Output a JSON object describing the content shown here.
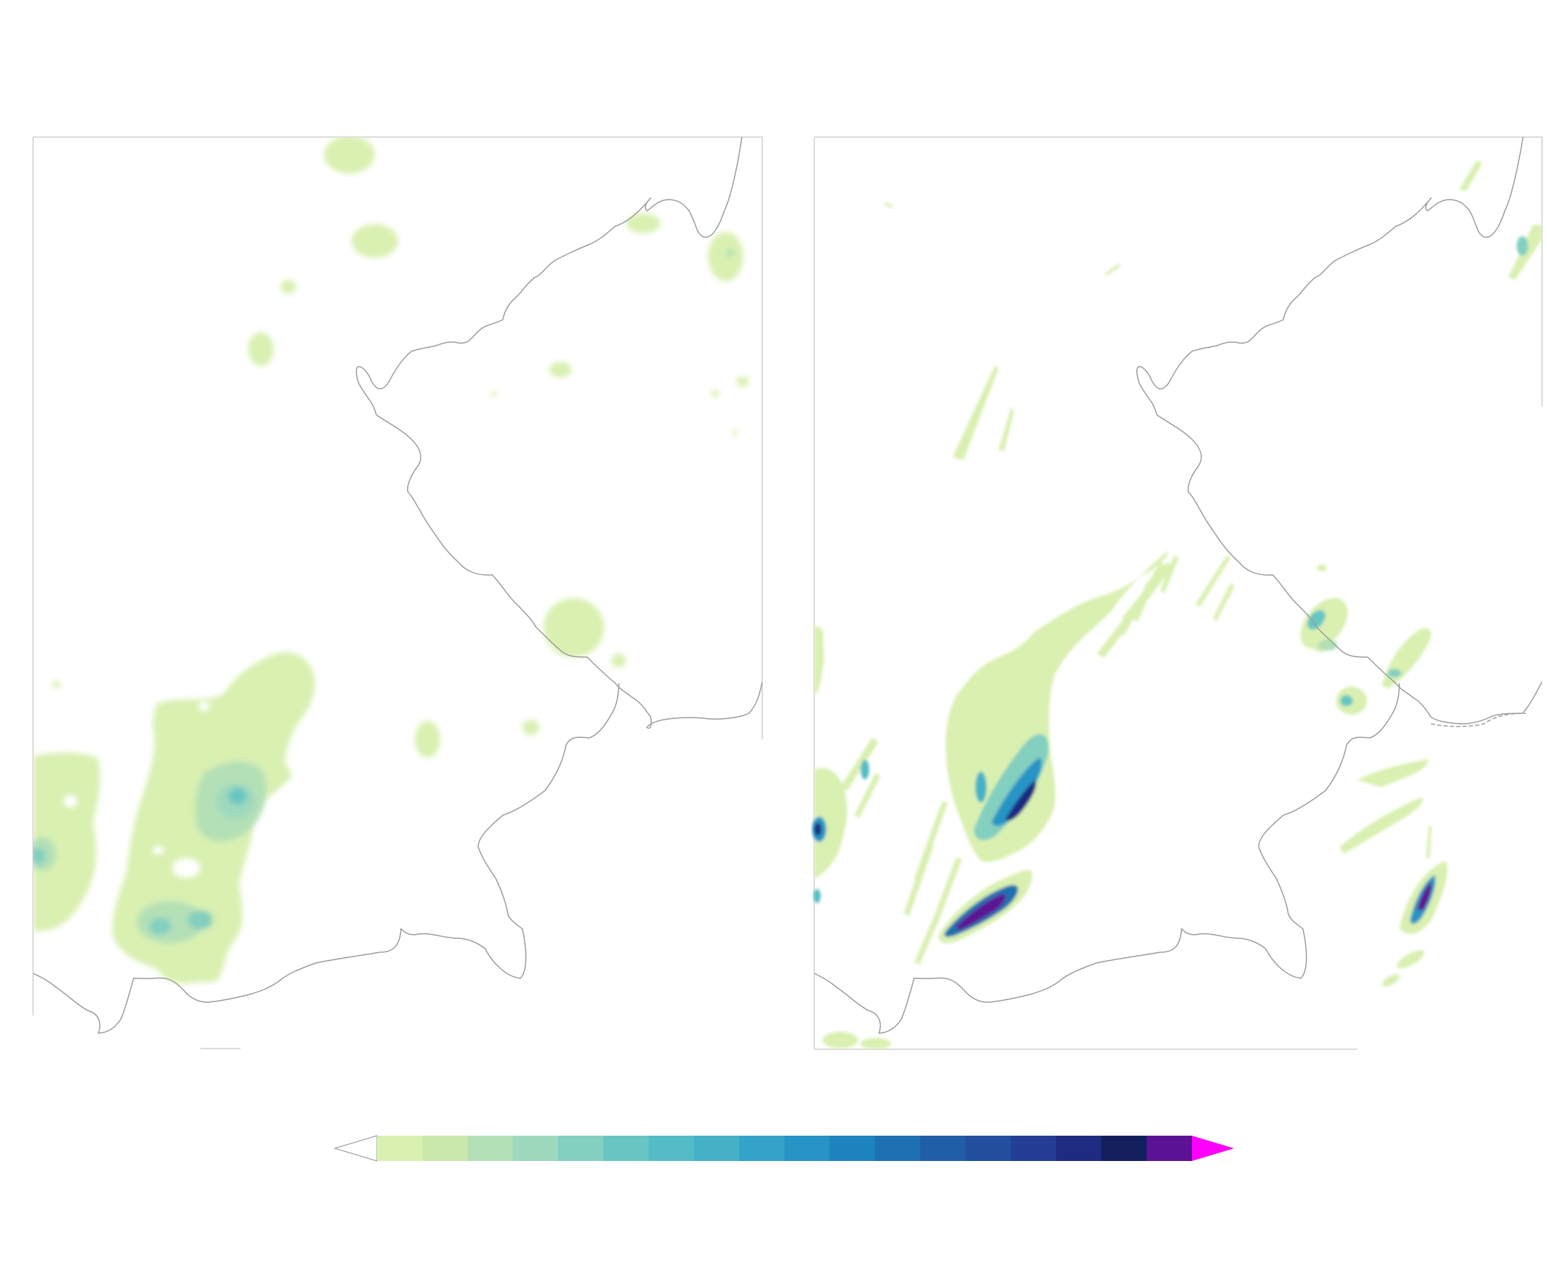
{
  "figure": {
    "type": "two-panel precipitation map with shared colorbar",
    "panels": [
      {
        "id": "left",
        "description_kind": "smooth field"
      },
      {
        "id": "right",
        "description_kind": "streaky convective field"
      }
    ]
  },
  "colorbar": {
    "under_color": "#ffffff",
    "over_color": "#ff00ff",
    "colors": [
      "#d9f0b1",
      "#c9e9ab",
      "#b4e0b6",
      "#9fd9bd",
      "#83cfc0",
      "#68c6c2",
      "#53bcc4",
      "#45b1c7",
      "#34a3c9",
      "#2694c5",
      "#1d84bd",
      "#1f70b1",
      "#205ea6",
      "#22509f",
      "#233e94",
      "#1e2b80",
      "#121f5c",
      "#5c1294"
    ]
  },
  "colors": {
    "coastline": "#9a9a9a",
    "frame": "#cfcfcf",
    "background": "#ffffff"
  }
}
